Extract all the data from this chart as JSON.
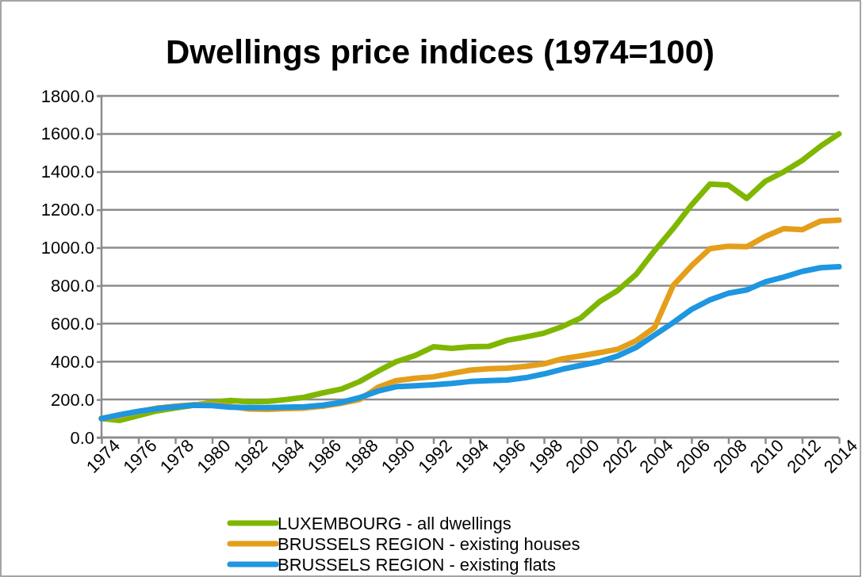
{
  "chart_data": {
    "type": "line",
    "title": "Dwellings price indices (1974=100)",
    "x": [
      1974,
      1975,
      1976,
      1977,
      1978,
      1979,
      1980,
      1981,
      1982,
      1983,
      1984,
      1985,
      1986,
      1987,
      1988,
      1989,
      1990,
      1991,
      1992,
      1993,
      1994,
      1995,
      1996,
      1997,
      1998,
      1999,
      2000,
      2001,
      2002,
      2003,
      2004,
      2005,
      2006,
      2007,
      2008,
      2009,
      2010,
      2011,
      2012,
      2013,
      2014
    ],
    "series": [
      {
        "name": "LUXEMBOURG - all dwellings",
        "color": "#7fb700",
        "values": [
          100,
          90,
          115,
          140,
          155,
          170,
          185,
          195,
          188,
          190,
          200,
          212,
          235,
          255,
          295,
          350,
          400,
          432,
          478,
          470,
          478,
          480,
          512,
          530,
          550,
          585,
          630,
          715,
          775,
          860,
          985,
          1100,
          1225,
          1335,
          1330,
          1260,
          1350,
          1400,
          1460,
          1535,
          1600
        ]
      },
      {
        "name": "BRUSSELS REGION - existing houses",
        "color": "#e49e1a",
        "values": [
          100,
          115,
          135,
          155,
          165,
          172,
          175,
          165,
          150,
          148,
          152,
          155,
          165,
          180,
          200,
          265,
          300,
          312,
          320,
          338,
          355,
          362,
          365,
          375,
          388,
          415,
          430,
          447,
          465,
          510,
          580,
          800,
          905,
          995,
          1008,
          1005,
          1060,
          1100,
          1095,
          1140,
          1145
        ]
      },
      {
        "name": "BRUSSELS REGION - existing flats",
        "color": "#1e96e0",
        "values": [
          100,
          120,
          138,
          152,
          162,
          170,
          168,
          160,
          158,
          158,
          160,
          162,
          170,
          185,
          210,
          245,
          268,
          272,
          278,
          285,
          295,
          300,
          303,
          315,
          335,
          360,
          380,
          400,
          430,
          475,
          540,
          605,
          675,
          725,
          760,
          778,
          820,
          845,
          875,
          895,
          900
        ]
      }
    ],
    "xlim": [
      1974,
      2014
    ],
    "xticks": [
      1974,
      1976,
      1978,
      1980,
      1982,
      1984,
      1986,
      1988,
      1990,
      1992,
      1994,
      1996,
      1998,
      2000,
      2002,
      2004,
      2006,
      2008,
      2010,
      2012,
      2014
    ],
    "ylim": [
      0,
      1800
    ],
    "yticks": [
      {
        "value": 0,
        "label": "0.0"
      },
      {
        "value": 200,
        "label": "200.0"
      },
      {
        "value": 400,
        "label": "400.0"
      },
      {
        "value": 600,
        "label": "600.0"
      },
      {
        "value": 800,
        "label": "800.0"
      },
      {
        "value": 1000,
        "label": "1000.0"
      },
      {
        "value": 1200,
        "label": "1200.0"
      },
      {
        "value": 1400,
        "label": "1400.0"
      },
      {
        "value": 1600,
        "label": "1600.0"
      },
      {
        "value": 1800,
        "label": "1800.0"
      }
    ],
    "grid": "y",
    "legend": "bottom",
    "marker": "none",
    "line_style": "solid"
  }
}
